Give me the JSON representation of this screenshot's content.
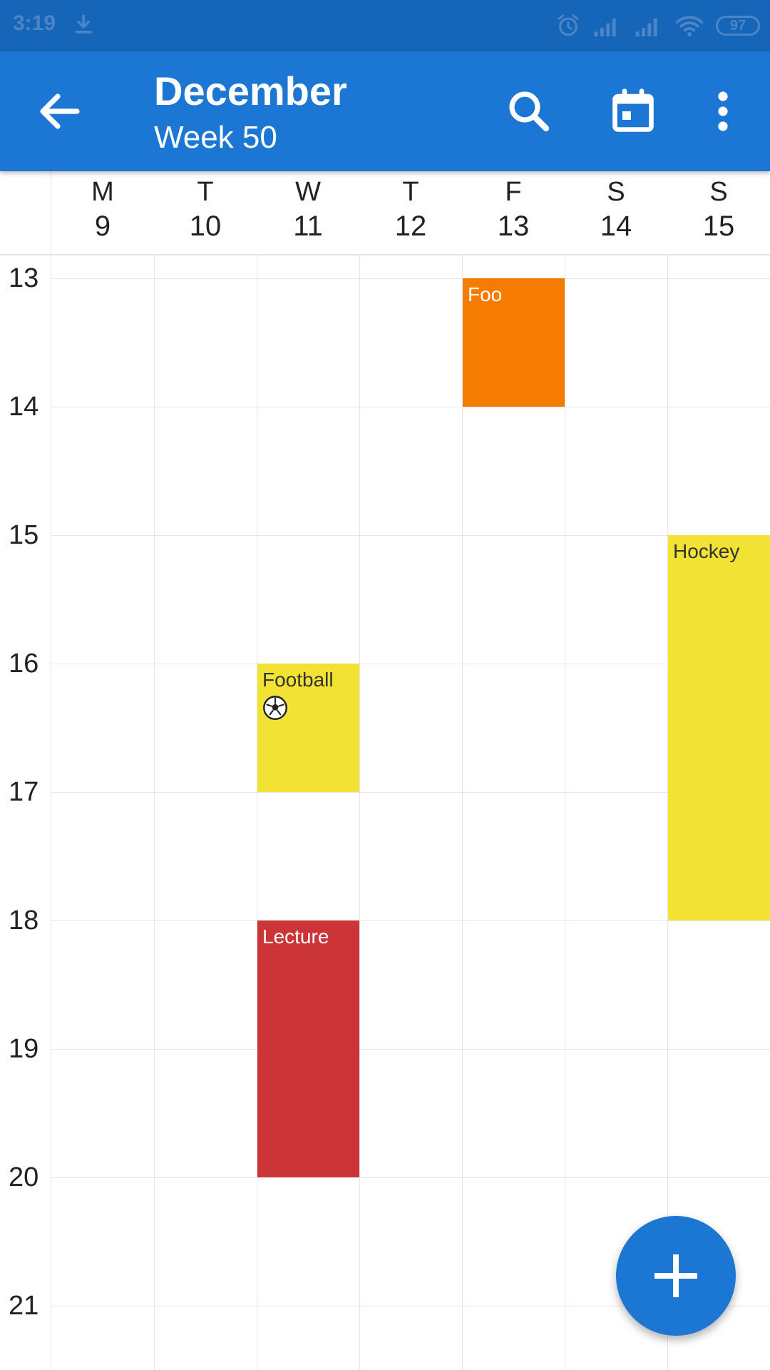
{
  "status_bar": {
    "time": "3:19",
    "battery": "97",
    "icons": [
      "download-icon",
      "alarm-icon",
      "signal-icon",
      "signal-icon",
      "wifi-icon",
      "battery-icon"
    ]
  },
  "app_bar": {
    "title": "December",
    "subtitle": "Week 50",
    "back_icon": "arrow-back-icon",
    "search_icon": "search-icon",
    "today_icon": "calendar-today-icon",
    "more_icon": "more-vert-icon",
    "color": "#1c77d4"
  },
  "days": [
    {
      "letter": "M",
      "num": "9"
    },
    {
      "letter": "T",
      "num": "10"
    },
    {
      "letter": "W",
      "num": "11"
    },
    {
      "letter": "T",
      "num": "12"
    },
    {
      "letter": "F",
      "num": "13"
    },
    {
      "letter": "S",
      "num": "14"
    },
    {
      "letter": "S",
      "num": "15"
    }
  ],
  "hours": [
    "13",
    "14",
    "15",
    "16",
    "17",
    "18",
    "19",
    "20",
    "21"
  ],
  "events": [
    {
      "title": "Foo",
      "day": 4,
      "start": 13,
      "end": 14,
      "color": "#f57c00",
      "text_color": "#ffffff"
    },
    {
      "title": "Hockey",
      "day": 6,
      "start": 15,
      "end": 18,
      "color": "#f2e233",
      "text_color": "#333333"
    },
    {
      "title": "Football",
      "day": 2,
      "start": 16,
      "end": 17,
      "color": "#f2e233",
      "text_color": "#333333",
      "icon": "soccer-ball-icon"
    },
    {
      "title": "Lecture",
      "day": 2,
      "start": 18,
      "end": 20,
      "color": "#cc3537",
      "text_color": "#ffffff"
    }
  ],
  "fab": {
    "icon": "plus-icon",
    "color": "#1c77d4"
  }
}
